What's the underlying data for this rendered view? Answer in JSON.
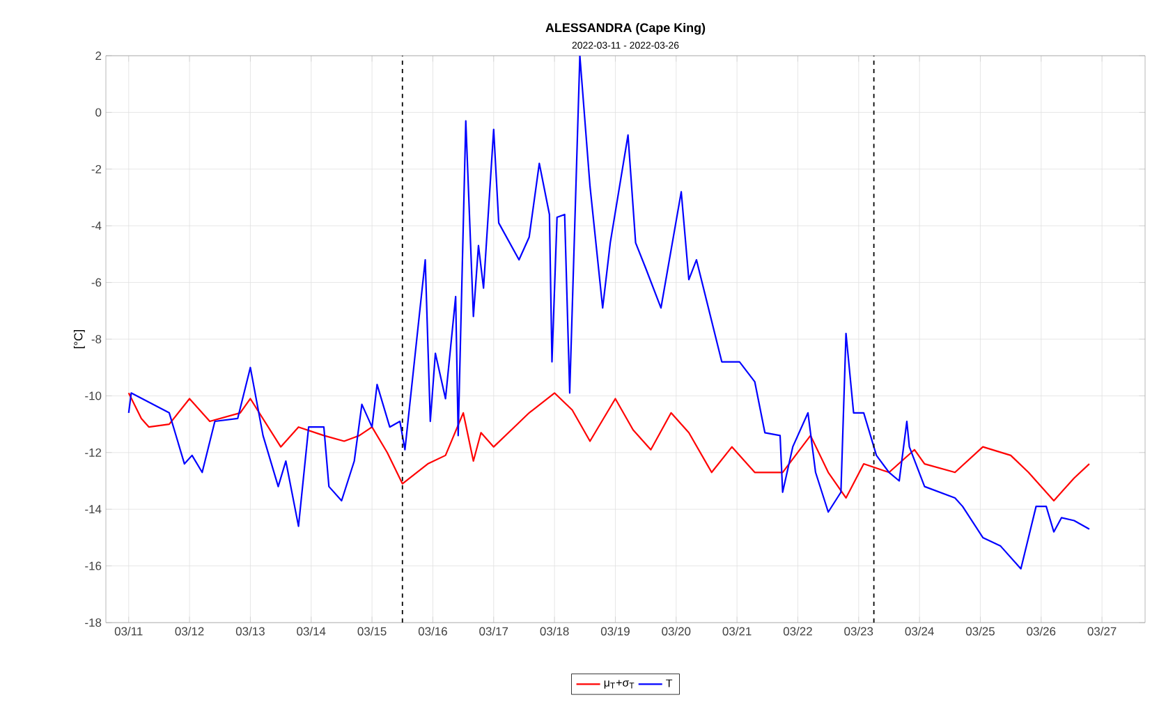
{
  "chart_data": {
    "type": "line",
    "title": "ALESSANDRA  (Cape King)",
    "subtitle": "2022-03-11  -  2022-03-26",
    "ylabel": "[°C]",
    "xlim": [
      "2022-03-10T15:00",
      "2022-03-27T17:00"
    ],
    "xticks": [
      {
        "value": "2022-03-11",
        "label": "03/11"
      },
      {
        "value": "2022-03-12",
        "label": "03/12"
      },
      {
        "value": "2022-03-13",
        "label": "03/13"
      },
      {
        "value": "2022-03-14",
        "label": "03/14"
      },
      {
        "value": "2022-03-15",
        "label": "03/15"
      },
      {
        "value": "2022-03-16",
        "label": "03/16"
      },
      {
        "value": "2022-03-17",
        "label": "03/17"
      },
      {
        "value": "2022-03-18",
        "label": "03/18"
      },
      {
        "value": "2022-03-19",
        "label": "03/19"
      },
      {
        "value": "2022-03-20",
        "label": "03/20"
      },
      {
        "value": "2022-03-21",
        "label": "03/21"
      },
      {
        "value": "2022-03-22",
        "label": "03/22"
      },
      {
        "value": "2022-03-23",
        "label": "03/23"
      },
      {
        "value": "2022-03-24",
        "label": "03/24"
      },
      {
        "value": "2022-03-25",
        "label": "03/25"
      },
      {
        "value": "2022-03-26",
        "label": "03/26"
      },
      {
        "value": "2022-03-27",
        "label": "03/27"
      }
    ],
    "ylim": [
      -18,
      2
    ],
    "yticks": [
      -18,
      -16,
      -14,
      -12,
      -10,
      -8,
      -6,
      -4,
      -2,
      0,
      2
    ],
    "grid": true,
    "legend": "bottom",
    "ref_lines": [
      {
        "axis": "x",
        "value": "2022-03-15T12:00",
        "color": "#000000",
        "line_style": "dashed"
      },
      {
        "axis": "x",
        "value": "2022-03-23T06:00",
        "color": "#000000",
        "line_style": "dashed"
      }
    ],
    "series": [
      {
        "name": "μ$_{T}$+σ$_{T}$",
        "color": "#ff0000",
        "x": [
          "2022-03-11T00:00",
          "2022-03-11T05:00",
          "2022-03-11T08:00",
          "2022-03-11T16:00",
          "2022-03-12T00:00",
          "2022-03-12T08:00",
          "2022-03-12T20:00",
          "2022-03-13T00:00",
          "2022-03-13T12:00",
          "2022-03-13T19:00",
          "2022-03-14T05:00",
          "2022-03-14T13:00",
          "2022-03-14T19:00",
          "2022-03-15T00:00",
          "2022-03-15T06:00",
          "2022-03-15T12:00",
          "2022-03-15T22:00",
          "2022-03-16T05:00",
          "2022-03-16T12:00",
          "2022-03-16T16:00",
          "2022-03-16T19:00",
          "2022-03-17T00:00",
          "2022-03-17T07:00",
          "2022-03-17T14:00",
          "2022-03-18T00:00",
          "2022-03-18T07:00",
          "2022-03-18T14:00",
          "2022-03-19T00:00",
          "2022-03-19T07:00",
          "2022-03-19T14:00",
          "2022-03-19T22:00",
          "2022-03-20T05:00",
          "2022-03-20T14:00",
          "2022-03-20T22:00",
          "2022-03-21T07:00",
          "2022-03-21T18:00",
          "2022-03-22T05:00",
          "2022-03-22T12:00",
          "2022-03-22T19:00",
          "2022-03-23T02:00",
          "2022-03-23T12:00",
          "2022-03-23T22:00",
          "2022-03-24T02:00",
          "2022-03-24T14:00",
          "2022-03-25T01:00",
          "2022-03-25T12:00",
          "2022-03-25T19:00",
          "2022-03-26T05:00",
          "2022-03-26T13:00",
          "2022-03-26T19:00"
        ],
        "values": [
          -9.9,
          -10.8,
          -11.1,
          -11.0,
          -10.1,
          -10.9,
          -10.6,
          -10.1,
          -11.8,
          -11.1,
          -11.4,
          -11.6,
          -11.4,
          -11.1,
          -12.0,
          -13.1,
          -12.4,
          -12.1,
          -10.6,
          -12.3,
          -11.3,
          -11.8,
          -11.2,
          -10.6,
          -9.9,
          -10.5,
          -11.6,
          -10.1,
          -11.2,
          -11.9,
          -10.6,
          -11.3,
          -12.7,
          -11.8,
          -12.7,
          -12.7,
          -11.4,
          -12.7,
          -13.6,
          -12.4,
          -12.7,
          -11.9,
          -12.4,
          -12.7,
          -11.8,
          -12.1,
          -12.7,
          -13.7,
          -12.9,
          -12.4
        ]
      },
      {
        "name": "T",
        "color": "#0000ff",
        "x": [
          "2022-03-11T00:00",
          "2022-03-11T01:00",
          "2022-03-11T16:00",
          "2022-03-11T22:00",
          "2022-03-12T01:00",
          "2022-03-12T05:00",
          "2022-03-12T10:00",
          "2022-03-12T19:00",
          "2022-03-13T00:00",
          "2022-03-13T05:00",
          "2022-03-13T11:00",
          "2022-03-13T14:00",
          "2022-03-13T19:00",
          "2022-03-13T23:00",
          "2022-03-14T05:00",
          "2022-03-14T07:00",
          "2022-03-14T12:00",
          "2022-03-14T17:00",
          "2022-03-14T20:00",
          "2022-03-15T00:00",
          "2022-03-15T02:00",
          "2022-03-15T07:00",
          "2022-03-15T11:00",
          "2022-03-15T13:00",
          "2022-03-15T21:00",
          "2022-03-15T23:00",
          "2022-03-16T01:00",
          "2022-03-16T05:00",
          "2022-03-16T09:00",
          "2022-03-16T10:00",
          "2022-03-16T13:00",
          "2022-03-16T16:00",
          "2022-03-16T18:00",
          "2022-03-16T20:00",
          "2022-03-17T00:00",
          "2022-03-17T02:00",
          "2022-03-17T10:00",
          "2022-03-17T14:00",
          "2022-03-17T18:00",
          "2022-03-17T22:00",
          "2022-03-17T23:00",
          "2022-03-18T01:00",
          "2022-03-18T04:00",
          "2022-03-18T06:00",
          "2022-03-18T10:00",
          "2022-03-18T14:00",
          "2022-03-18T19:00",
          "2022-03-18T22:00",
          "2022-03-19T05:00",
          "2022-03-19T08:00",
          "2022-03-19T12:00",
          "2022-03-19T18:00",
          "2022-03-20T02:00",
          "2022-03-20T05:00",
          "2022-03-20T08:00",
          "2022-03-20T18:00",
          "2022-03-21T01:00",
          "2022-03-21T07:00",
          "2022-03-21T11:00",
          "2022-03-21T17:00",
          "2022-03-21T18:00",
          "2022-03-21T22:00",
          "2022-03-22T04:00",
          "2022-03-22T07:00",
          "2022-03-22T12:00",
          "2022-03-22T17:00",
          "2022-03-22T19:00",
          "2022-03-22T22:00",
          "2022-03-23T02:00",
          "2022-03-23T07:00",
          "2022-03-23T12:00",
          "2022-03-23T16:00",
          "2022-03-23T19:00",
          "2022-03-23T20:00",
          "2022-03-24T02:00",
          "2022-03-24T14:00",
          "2022-03-24T17:00",
          "2022-03-25T01:00",
          "2022-03-25T08:00",
          "2022-03-25T16:00",
          "2022-03-25T22:00",
          "2022-03-26T02:00",
          "2022-03-26T05:00",
          "2022-03-26T08:00",
          "2022-03-26T13:00",
          "2022-03-26T19:00"
        ],
        "values": [
          -10.6,
          -9.9,
          -10.6,
          -12.4,
          -12.1,
          -12.7,
          -10.9,
          -10.8,
          -9.0,
          -11.4,
          -13.2,
          -12.3,
          -14.6,
          -11.1,
          -11.1,
          -13.2,
          -13.7,
          -12.3,
          -10.3,
          -11.1,
          -9.6,
          -11.1,
          -10.9,
          -11.9,
          -5.2,
          -10.9,
          -8.5,
          -10.1,
          -6.5,
          -11.4,
          -0.3,
          -7.2,
          -4.7,
          -6.2,
          -0.6,
          -3.9,
          -5.2,
          -4.4,
          -1.8,
          -3.6,
          -8.8,
          -3.7,
          -3.6,
          -9.9,
          2.0,
          -2.6,
          -6.9,
          -4.6,
          -0.8,
          -4.6,
          -5.5,
          -6.9,
          -2.8,
          -5.9,
          -5.2,
          -8.8,
          -8.8,
          -9.5,
          -11.3,
          -11.4,
          -13.4,
          -11.8,
          -10.6,
          -12.7,
          -14.1,
          -13.4,
          -7.8,
          -10.6,
          -10.6,
          -12.1,
          -12.7,
          -13.0,
          -10.9,
          -11.8,
          -13.2,
          -13.6,
          -13.9,
          -15.0,
          -15.3,
          -16.1,
          -13.9,
          -13.9,
          -14.8,
          -14.3,
          -14.4,
          -14.7
        ]
      }
    ]
  }
}
